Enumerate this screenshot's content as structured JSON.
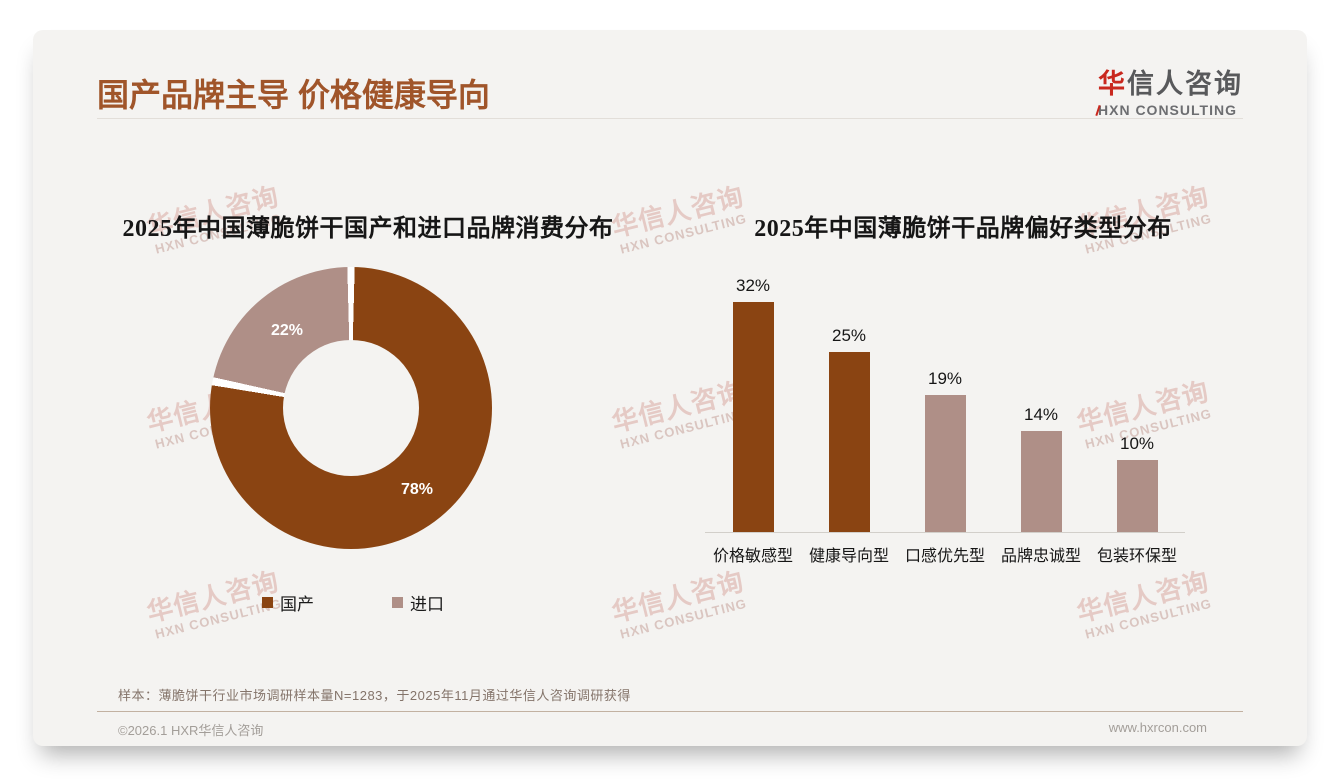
{
  "page": {
    "title": "国产品牌主导 价格健康导向",
    "logo": {
      "accent": "华",
      "rest": "信人咨询",
      "subtitle": "HXN CONSULTING"
    },
    "watermark": {
      "line1": "华信人咨询",
      "line2": "HXN CONSULTING"
    },
    "note": "样本：薄脆饼干行业市场调研样本量N=1283，于2025年11月通过华信人咨询调研获得",
    "footer": {
      "copyright": "©2026.1 HXR华信人咨询",
      "website": "www.hxrcon.com"
    }
  },
  "colors": {
    "title_brown": "#a0552a",
    "primary_brown": "#8a4412",
    "secondary_mauve": "#af8f87",
    "card_background": "#f4f3f1",
    "separator_white": "#ffffff"
  },
  "chart_data": [
    {
      "type": "pie",
      "donut": true,
      "title": "2025年中国薄脆饼干国产和进口品牌消费分布",
      "labels": [
        "国产",
        "进口"
      ],
      "values": [
        78,
        22
      ],
      "value_labels": [
        "78%",
        "22%"
      ],
      "colors": [
        "#8a4412",
        "#af8f87"
      ],
      "legend_position": "bottom",
      "start_angle_deg": 0,
      "direction": "clockwise"
    },
    {
      "type": "bar",
      "title": "2025年中国薄脆饼干品牌偏好类型分布",
      "categories": [
        "价格敏感型",
        "健康导向型",
        "口感优先型",
        "品牌忠诚型",
        "包装环保型"
      ],
      "values": [
        32,
        25,
        19,
        14,
        10
      ],
      "value_labels": [
        "32%",
        "25%",
        "19%",
        "14%",
        "10%"
      ],
      "bar_colors": [
        "#8a4412",
        "#8a4412",
        "#af8f87",
        "#af8f87",
        "#af8f87"
      ],
      "xlabel": "",
      "ylabel": "",
      "ylim": [
        0,
        35
      ],
      "grid": false,
      "value_labels_position": "above"
    }
  ]
}
